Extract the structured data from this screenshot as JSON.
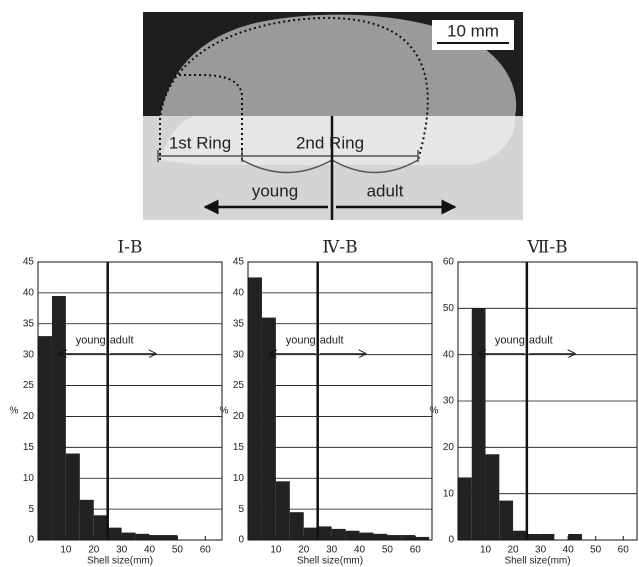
{
  "photo": {
    "scale_bar": "10 mm",
    "ring1": "1st Ring",
    "ring2": "2nd Ring",
    "young": "young",
    "adult": "adult"
  },
  "chart_data": [
    {
      "type": "histogram",
      "title": "Ⅰ-B",
      "xlabel": "Shell size(mm)",
      "ylabel": "%",
      "bins": [
        0,
        5,
        10,
        15,
        20,
        25,
        30,
        35,
        40,
        45,
        50,
        55,
        60,
        65
      ],
      "values": [
        33,
        39.5,
        14,
        6.5,
        4,
        2,
        1.2,
        1,
        0.8,
        0.8,
        0,
        0,
        0
      ],
      "color": "#222222",
      "xlim": [
        0,
        66
      ],
      "ylim": [
        0,
        45
      ],
      "xticks": [
        10,
        20,
        30,
        40,
        50,
        60
      ],
      "yticks": [
        0,
        5,
        10,
        15,
        20,
        25,
        30,
        35,
        40,
        45
      ],
      "grid": true,
      "threshold": 25,
      "annotations": [
        "young",
        "adult"
      ]
    },
    {
      "type": "histogram",
      "title": "Ⅳ-B",
      "xlabel": "Shell size(mm)",
      "ylabel": "%",
      "bins": [
        0,
        5,
        10,
        15,
        20,
        25,
        30,
        35,
        40,
        45,
        50,
        55,
        60,
        65
      ],
      "values": [
        42.5,
        36,
        9.5,
        4.5,
        2,
        2.2,
        1.8,
        1.5,
        1.2,
        1,
        0.8,
        0.8,
        0.5
      ],
      "color": "#222222",
      "xlim": [
        0,
        66
      ],
      "ylim": [
        0,
        45
      ],
      "xticks": [
        10,
        20,
        30,
        40,
        50,
        60
      ],
      "yticks": [
        0,
        5,
        10,
        15,
        20,
        25,
        30,
        35,
        40,
        45
      ],
      "grid": true,
      "threshold": 25,
      "annotations": [
        "young",
        "adult"
      ]
    },
    {
      "type": "histogram",
      "title": "Ⅶ-B",
      "xlabel": "Shell size(mm)",
      "ylabel": "%",
      "bins": [
        0,
        5,
        10,
        15,
        20,
        25,
        30,
        35,
        40,
        45,
        50,
        55,
        60,
        65
      ],
      "values": [
        13.5,
        50,
        18.5,
        8.5,
        2,
        1.3,
        1.3,
        0,
        1.3,
        0,
        0,
        0,
        0
      ],
      "color": "#222222",
      "xlim": [
        0,
        65
      ],
      "ylim": [
        0,
        60
      ],
      "xticks": [
        10,
        20,
        30,
        40,
        50,
        60
      ],
      "yticks": [
        0,
        10,
        20,
        30,
        40,
        50,
        60
      ],
      "grid": true,
      "threshold": 25,
      "annotations": [
        "young",
        "adult"
      ]
    }
  ]
}
